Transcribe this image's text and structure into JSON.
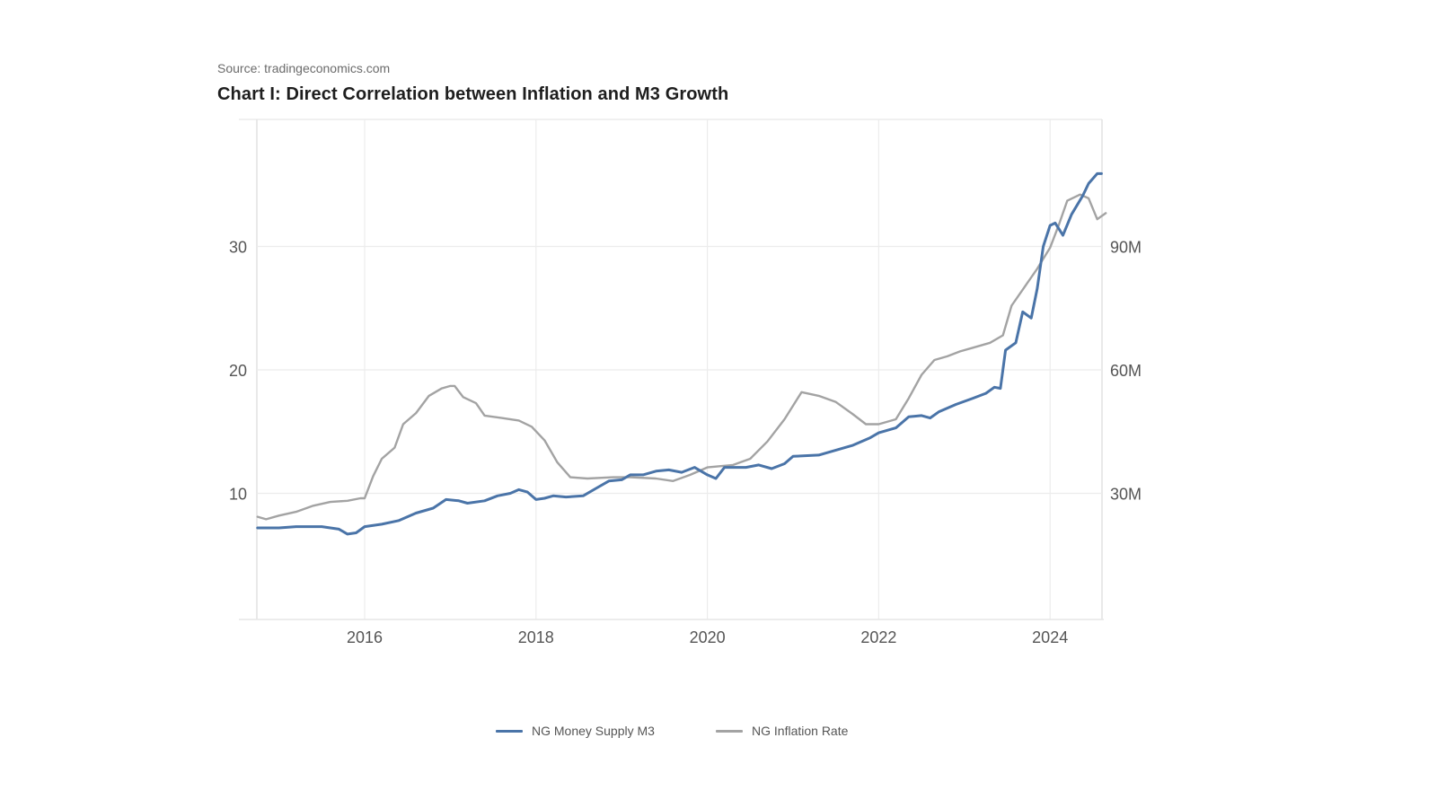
{
  "source": "Source: tradingeconomics.com",
  "title": "Chart I: Direct Correlation between Inflation and M3 Growth",
  "colors": {
    "m3": "#4a74a8",
    "inflation": "#a3a3a3",
    "grid": "#ececec"
  },
  "chart_data": {
    "type": "line",
    "title": "Chart I: Direct Correlation between Inflation and M3 Growth",
    "xlabel": "",
    "ylabel_left": "",
    "ylabel_right": "",
    "xlim": [
      2014.75,
      2024.95
    ],
    "ylim_left": [
      0,
      40
    ],
    "ylim_right": [
      0,
      120
    ],
    "x_ticks": [
      2016,
      2018,
      2020,
      2022,
      2024
    ],
    "x_tick_labels": [
      "2016",
      "2018",
      "2020",
      "2022",
      "2024"
    ],
    "y_ticks_left": [
      10,
      20,
      30
    ],
    "y_tick_labels_left": [
      "10",
      "20",
      "30"
    ],
    "y_ticks_right": [
      30,
      60,
      90
    ],
    "y_tick_labels_right": [
      "30M",
      "60M",
      "90M"
    ],
    "grid": true,
    "legend_position": "bottom-center",
    "series": [
      {
        "name": "NG Money Supply M3",
        "axis": "right",
        "unit": "M",
        "x": [
          2014.75,
          2015.0,
          2015.2,
          2015.5,
          2015.7,
          2015.8,
          2015.9,
          2016.0,
          2016.2,
          2016.4,
          2016.6,
          2016.8,
          2016.95,
          2017.1,
          2017.2,
          2017.4,
          2017.55,
          2017.7,
          2017.8,
          2017.9,
          2018.0,
          2018.1,
          2018.2,
          2018.35,
          2018.55,
          2018.7,
          2018.85,
          2019.0,
          2019.1,
          2019.25,
          2019.4,
          2019.55,
          2019.7,
          2019.85,
          2020.0,
          2020.1,
          2020.2,
          2020.45,
          2020.6,
          2020.75,
          2020.9,
          2021.0,
          2021.3,
          2021.5,
          2021.7,
          2021.9,
          2022.0,
          2022.2,
          2022.35,
          2022.5,
          2022.6,
          2022.7,
          2022.9,
          2023.1,
          2023.25,
          2023.35,
          2023.42,
          2023.48,
          2023.6,
          2023.68,
          2023.78,
          2023.85,
          2023.92,
          2024.0,
          2024.06,
          2024.15,
          2024.25,
          2024.38,
          2024.45,
          2024.55,
          2024.6
        ],
        "values": [
          21.6,
          21.6,
          21.9,
          21.9,
          21.3,
          20.1,
          20.4,
          21.9,
          22.5,
          23.4,
          25.2,
          26.4,
          28.5,
          28.2,
          27.6,
          28.2,
          29.4,
          30.0,
          30.9,
          30.3,
          28.5,
          28.8,
          29.4,
          29.1,
          29.4,
          31.2,
          33.0,
          33.3,
          34.5,
          34.5,
          35.4,
          35.7,
          35.1,
          36.3,
          34.5,
          33.6,
          36.3,
          36.3,
          36.9,
          36.0,
          37.2,
          39.0,
          39.3,
          40.5,
          41.7,
          43.5,
          44.7,
          45.9,
          48.6,
          48.9,
          48.3,
          49.8,
          51.6,
          53.1,
          54.3,
          55.8,
          55.5,
          64.8,
          66.6,
          74.1,
          72.6,
          79.8,
          90.0,
          95.1,
          95.7,
          92.7,
          97.8,
          102.3,
          105.3,
          107.7,
          107.7
        ]
      },
      {
        "name": "NG Inflation Rate",
        "axis": "left",
        "unit": "%",
        "x": [
          2014.75,
          2014.85,
          2015.0,
          2015.2,
          2015.4,
          2015.6,
          2015.8,
          2015.95,
          2016.0,
          2016.1,
          2016.2,
          2016.35,
          2016.45,
          2016.6,
          2016.75,
          2016.9,
          2017.0,
          2017.05,
          2017.15,
          2017.3,
          2017.4,
          2017.6,
          2017.8,
          2017.95,
          2018.1,
          2018.25,
          2018.4,
          2018.6,
          2018.9,
          2019.1,
          2019.4,
          2019.6,
          2019.8,
          2020.0,
          2020.3,
          2020.5,
          2020.7,
          2020.9,
          2021.1,
          2021.3,
          2021.5,
          2021.7,
          2021.85,
          2022.0,
          2022.2,
          2022.35,
          2022.5,
          2022.65,
          2022.8,
          2022.95,
          2023.1,
          2023.3,
          2023.45,
          2023.55,
          2023.7,
          2023.85,
          2024.0,
          2024.1,
          2024.2,
          2024.35,
          2024.45,
          2024.55,
          2024.65
        ],
        "values": [
          8.1,
          7.9,
          8.2,
          8.5,
          9.0,
          9.3,
          9.4,
          9.6,
          9.6,
          11.4,
          12.8,
          13.7,
          15.6,
          16.5,
          17.9,
          18.5,
          18.7,
          18.7,
          17.8,
          17.3,
          16.3,
          16.1,
          15.9,
          15.4,
          14.3,
          12.5,
          11.3,
          11.2,
          11.3,
          11.3,
          11.2,
          11.0,
          11.5,
          12.1,
          12.3,
          12.8,
          14.2,
          16.0,
          18.2,
          17.9,
          17.4,
          16.4,
          15.6,
          15.6,
          16.0,
          17.7,
          19.6,
          20.8,
          21.1,
          21.5,
          21.8,
          22.2,
          22.8,
          25.2,
          26.7,
          28.2,
          29.9,
          31.7,
          33.7,
          34.2,
          33.9,
          32.2,
          32.7
        ]
      }
    ]
  },
  "legend": [
    {
      "label": "NG Money Supply M3"
    },
    {
      "label": "NG Inflation Rate"
    }
  ]
}
